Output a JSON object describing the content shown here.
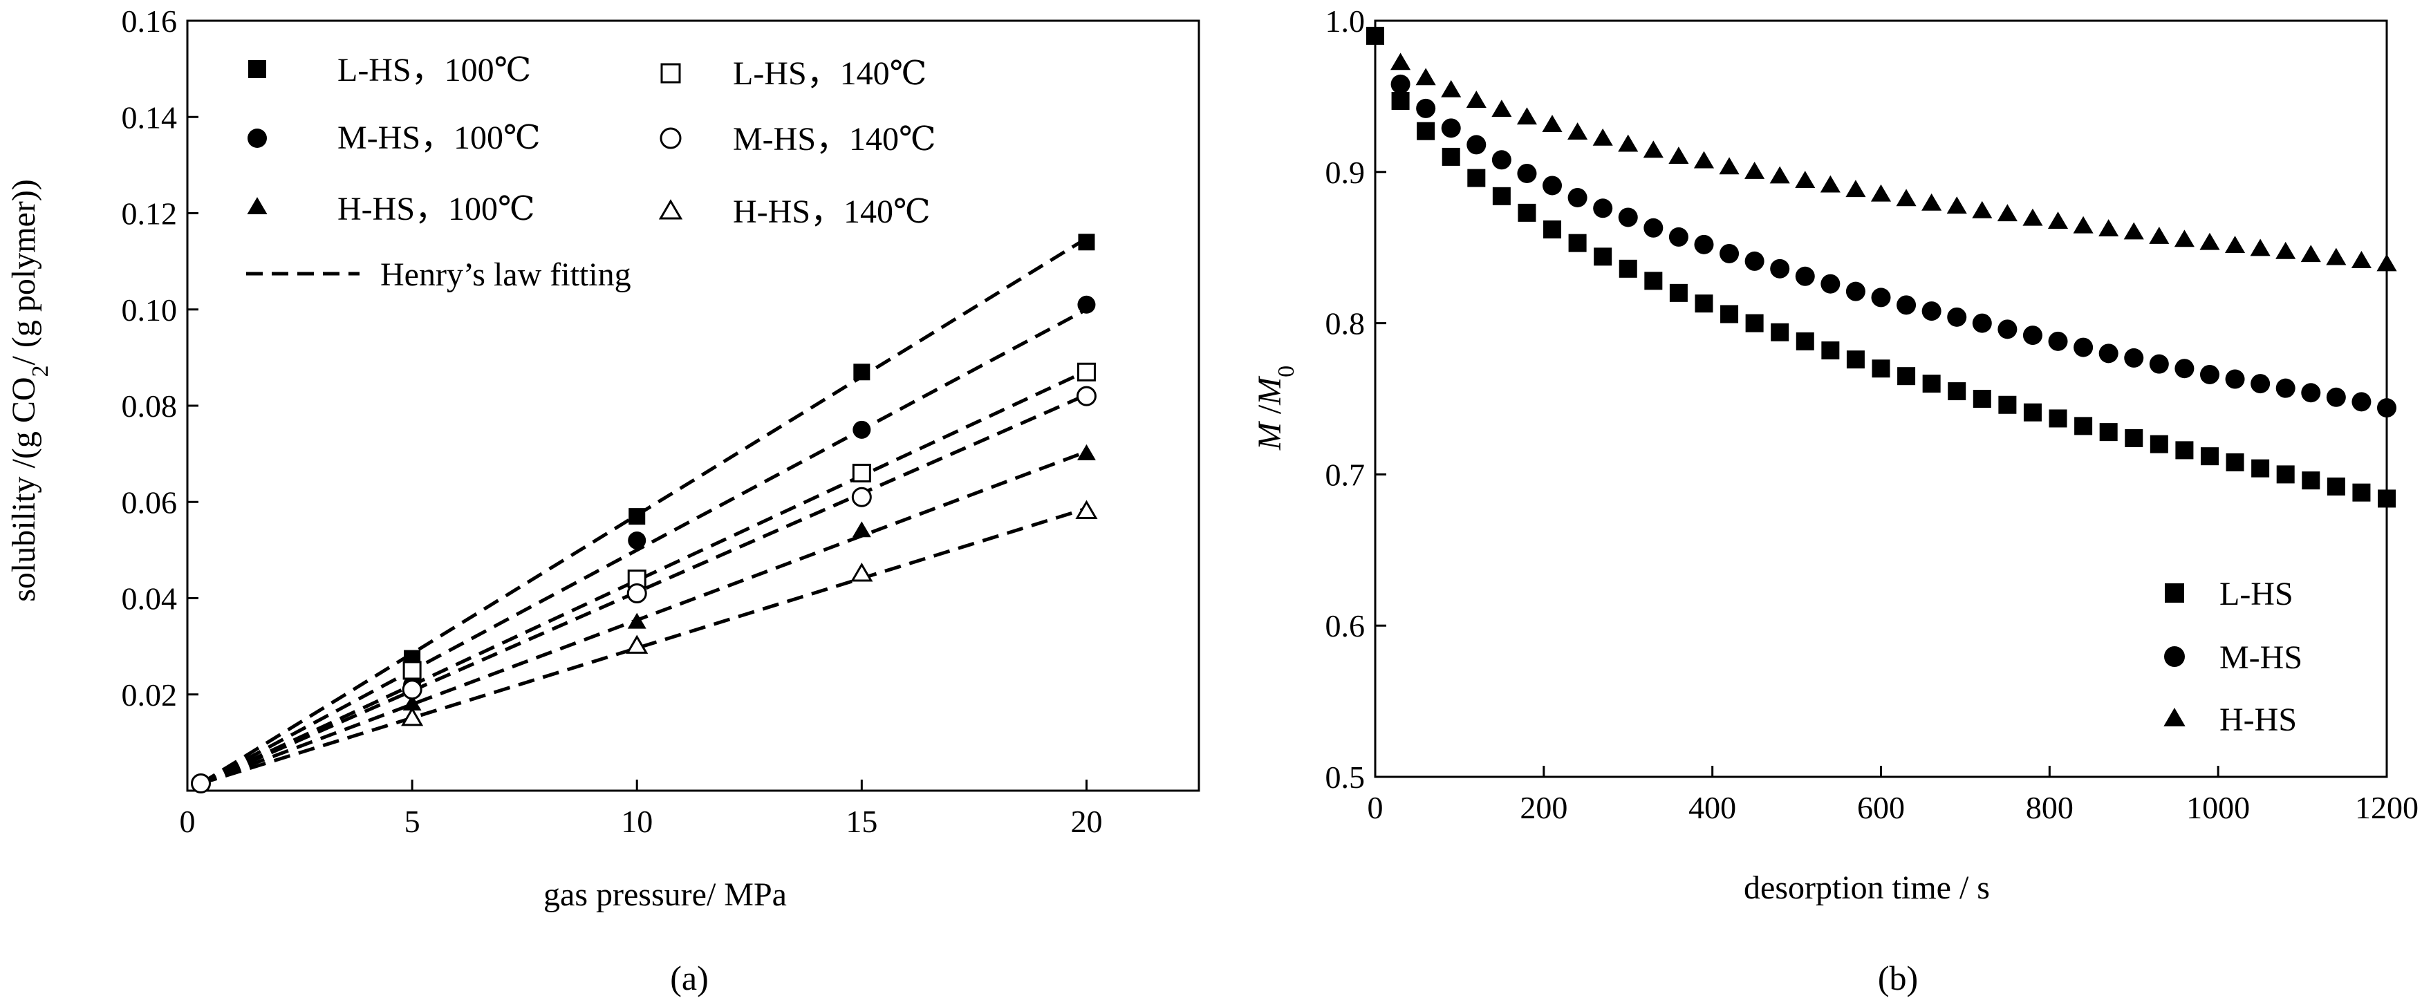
{
  "chart_data": [
    {
      "type": "scatter",
      "panel": "(a)",
      "xlabel": "gas pressure/ MPa",
      "ylabel_parts": [
        "solubility /(g CO",
        "2",
        "/ (g polymer))"
      ],
      "xlim": [
        0,
        22.5
      ],
      "ylim": [
        0,
        0.16
      ],
      "xticks": [
        "0",
        "5",
        "10",
        "15",
        "20"
      ],
      "xtick_values": [
        0,
        5,
        10,
        15,
        20
      ],
      "yticks": [
        "0.02",
        "0.04",
        "0.06",
        "0.08",
        "0.10",
        "0.12",
        "0.14",
        "0.16"
      ],
      "ytick_values": [
        0.02,
        0.04,
        0.06,
        0.08,
        0.1,
        0.12,
        0.14,
        0.16
      ],
      "legend_position": "top-left",
      "fit_label": "Henry’s law fitting",
      "origin_point": [
        0.3,
        0.0015
      ],
      "series": [
        {
          "name": "L-HS，100℃",
          "marker": "square-filled",
          "x": [
            5,
            10,
            15,
            20
          ],
          "y": [
            0.0275,
            0.057,
            0.087,
            0.114
          ],
          "fit_slope": 0.00575
        },
        {
          "name": "M-HS，100℃",
          "marker": "circle-filled",
          "x": [
            5,
            10,
            15,
            20
          ],
          "y": [
            0.022,
            0.052,
            0.075,
            0.101
          ],
          "fit_slope": 0.005
        },
        {
          "name": "H-HS，100℃",
          "marker": "triangle-filled",
          "x": [
            5,
            10,
            15,
            20
          ],
          "y": [
            0.018,
            0.035,
            0.054,
            0.07
          ],
          "fit_slope": 0.0035
        },
        {
          "name": "L-HS，140℃",
          "marker": "square-open",
          "x": [
            5,
            10,
            15,
            20
          ],
          "y": [
            0.025,
            0.044,
            0.066,
            0.087
          ],
          "fit_slope": 0.00435
        },
        {
          "name": "M-HS，140℃",
          "marker": "circle-open",
          "x": [
            5,
            10,
            15,
            20
          ],
          "y": [
            0.021,
            0.041,
            0.061,
            0.082
          ],
          "fit_slope": 0.0041
        },
        {
          "name": "H-HS，140℃",
          "marker": "triangle-open",
          "x": [
            5,
            10,
            15,
            20
          ],
          "y": [
            0.015,
            0.03,
            0.045,
            0.058
          ],
          "fit_slope": 0.0029
        }
      ]
    },
    {
      "type": "scatter",
      "panel": "(b)",
      "xlabel": "desorption time / s",
      "ylabel_parts": [
        "M",
        " /",
        "M",
        "0"
      ],
      "xlim": [
        0,
        1200
      ],
      "ylim": [
        0.5,
        1.0
      ],
      "xticks": [
        "0",
        "200",
        "400",
        "600",
        "800",
        "1000",
        "1200"
      ],
      "xtick_values": [
        0,
        200,
        400,
        600,
        800,
        1000,
        1200
      ],
      "yticks": [
        "0.5",
        "0.6",
        "0.7",
        "0.8",
        "0.9",
        "1.0"
      ],
      "ytick_values": [
        0.5,
        0.6,
        0.7,
        0.8,
        0.9,
        1.0
      ],
      "legend_position": "bottom-right",
      "x_step": 30,
      "series": [
        {
          "name": "L-HS",
          "marker": "square-filled",
          "y": [
            0.99,
            0.947,
            0.927,
            0.91,
            0.896,
            0.884,
            0.873,
            0.862,
            0.853,
            0.844,
            0.836,
            0.828,
            0.82,
            0.813,
            0.806,
            0.8,
            0.794,
            0.788,
            0.782,
            0.776,
            0.77,
            0.765,
            0.76,
            0.755,
            0.75,
            0.746,
            0.741,
            0.737,
            0.732,
            0.728,
            0.724,
            0.72,
            0.716,
            0.712,
            0.708,
            0.704,
            0.7,
            0.696,
            0.692,
            0.688,
            0.684
          ]
        },
        {
          "name": "M-HS",
          "marker": "circle-filled",
          "y": [
            0.99,
            0.958,
            0.942,
            0.929,
            0.918,
            0.908,
            0.899,
            0.891,
            0.883,
            0.876,
            0.87,
            0.863,
            0.857,
            0.852,
            0.846,
            0.841,
            0.836,
            0.831,
            0.826,
            0.821,
            0.817,
            0.812,
            0.808,
            0.804,
            0.8,
            0.796,
            0.792,
            0.788,
            0.784,
            0.78,
            0.777,
            0.773,
            0.77,
            0.766,
            0.763,
            0.76,
            0.757,
            0.754,
            0.751,
            0.748,
            0.744
          ]
        },
        {
          "name": "H-HS",
          "marker": "triangle-filled",
          "y": [
            0.99,
            0.972,
            0.962,
            0.954,
            0.947,
            0.941,
            0.936,
            0.931,
            0.926,
            0.922,
            0.918,
            0.914,
            0.91,
            0.907,
            0.903,
            0.9,
            0.897,
            0.894,
            0.891,
            0.888,
            0.885,
            0.882,
            0.879,
            0.877,
            0.874,
            0.872,
            0.869,
            0.867,
            0.864,
            0.862,
            0.86,
            0.857,
            0.855,
            0.853,
            0.851,
            0.849,
            0.847,
            0.845,
            0.843,
            0.841,
            0.839
          ]
        }
      ]
    }
  ]
}
